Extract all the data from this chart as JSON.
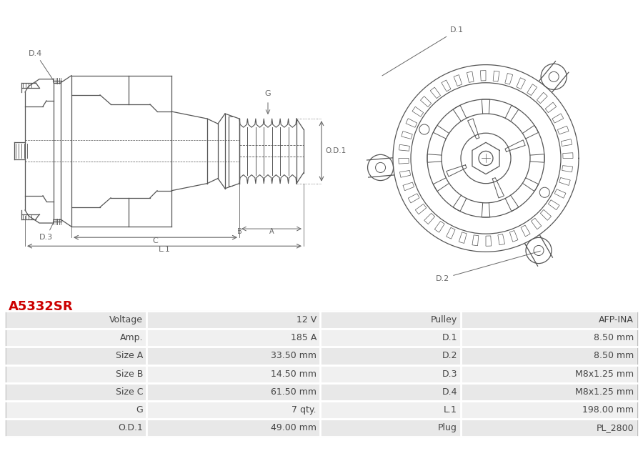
{
  "title": "A5332SR",
  "title_color": "#cc0000",
  "background_color": "#ffffff",
  "table_data": [
    [
      "Voltage",
      "12 V",
      "Pulley",
      "AFP-INA"
    ],
    [
      "Amp.",
      "185 A",
      "D.1",
      "8.50 mm"
    ],
    [
      "Size A",
      "33.50 mm",
      "D.2",
      "8.50 mm"
    ],
    [
      "Size B",
      "14.50 mm",
      "D.3",
      "M8x1.25 mm"
    ],
    [
      "Size C",
      "61.50 mm",
      "D.4",
      "M8x1.25 mm"
    ],
    [
      "G",
      "7 qty.",
      "L.1",
      "198.00 mm"
    ],
    [
      "O.D.1",
      "49.00 mm",
      "Plug",
      "PL_2800"
    ]
  ],
  "row_bg_alt": [
    "#e8e8e8",
    "#f0f0f0"
  ],
  "border_color": "#ffffff",
  "text_color": "#444444",
  "font_size_table": 9,
  "font_size_title": 13,
  "lc": "#555555",
  "dim_color": "#666666"
}
